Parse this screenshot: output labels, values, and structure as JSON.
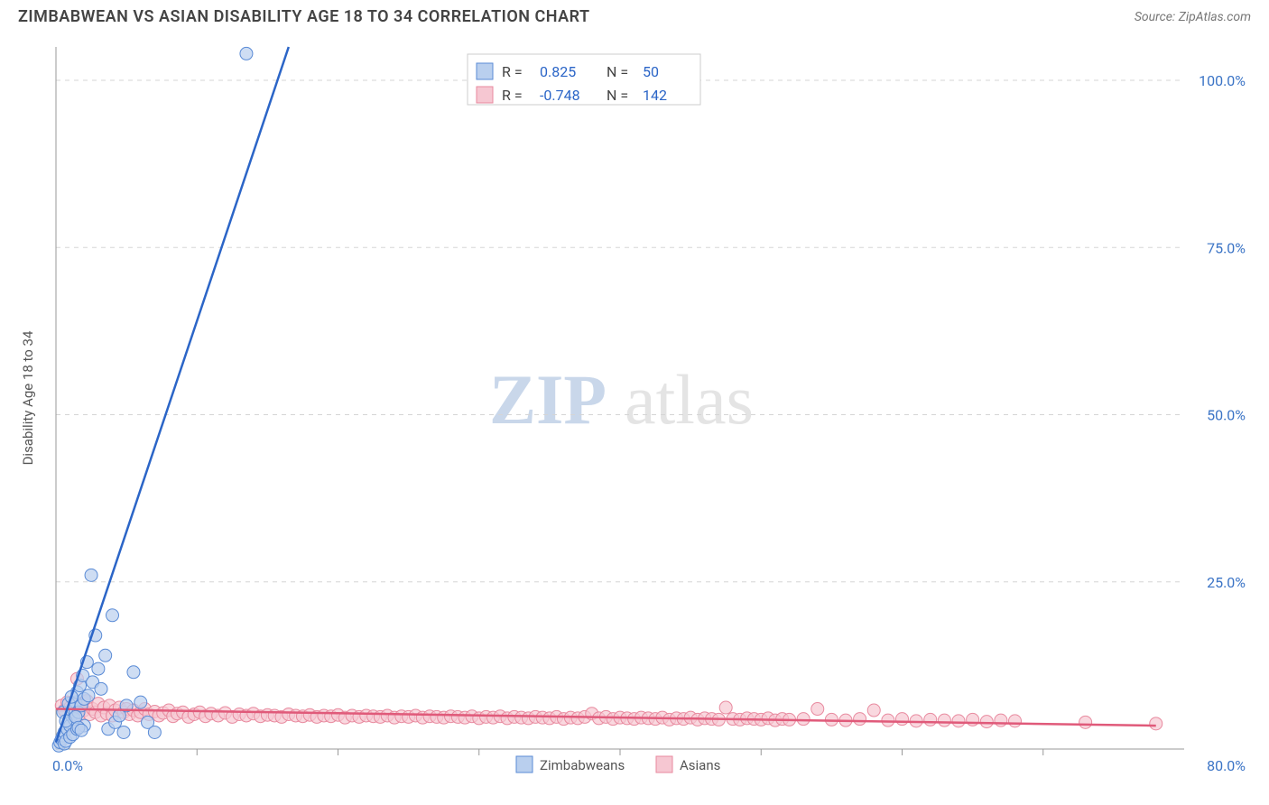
{
  "header": {
    "title": "ZIMBABWEAN VS ASIAN DISABILITY AGE 18 TO 34 CORRELATION CHART",
    "source": "Source: ZipAtlas.com"
  },
  "chart": {
    "type": "scatter",
    "background_color": "#ffffff",
    "grid_color": "#d5d5d5",
    "axis_color": "#999999",
    "tick_label_color": "#3b74c6",
    "y_axis_title": "Disability Age 18 to 34",
    "y_axis_title_fontsize": 15,
    "xlim": [
      0,
      80
    ],
    "ylim": [
      0,
      105
    ],
    "x_ticks": [
      10,
      20,
      30,
      40,
      50,
      60,
      70
    ],
    "y_ticks": [
      25,
      50,
      75,
      100
    ],
    "y_tick_labels": [
      "25.0%",
      "50.0%",
      "75.0%",
      "100.0%"
    ],
    "x_min_label": "0.0%",
    "x_max_label": "80.0%",
    "marker_radius": 7,
    "marker_stroke_width": 1,
    "line_width": 2.5,
    "watermark": {
      "part_a": "ZIP",
      "part_b": "atlas",
      "color_a": "#c9d7ea",
      "color_b": "#e4e4e4",
      "fontsize": 78
    },
    "series_a": {
      "label": "Zimbabweans",
      "fill": "#b9cfee",
      "stroke": "#5a8bd6",
      "line_color": "#2b65c7",
      "points": [
        [
          0.2,
          0.5
        ],
        [
          0.3,
          1.0
        ],
        [
          0.4,
          1.5
        ],
        [
          0.5,
          2.0
        ],
        [
          0.6,
          0.8
        ],
        [
          0.6,
          2.5
        ],
        [
          0.7,
          1.2
        ],
        [
          0.8,
          3.0
        ],
        [
          0.9,
          4.0
        ],
        [
          1.0,
          3.5
        ],
        [
          1.0,
          1.8
        ],
        [
          1.1,
          5.0
        ],
        [
          1.2,
          6.0
        ],
        [
          1.2,
          2.2
        ],
        [
          1.3,
          4.5
        ],
        [
          1.4,
          7.0
        ],
        [
          1.5,
          8.5
        ],
        [
          1.5,
          3.0
        ],
        [
          1.6,
          5.5
        ],
        [
          1.7,
          9.5
        ],
        [
          1.8,
          6.5
        ],
        [
          1.9,
          11.0
        ],
        [
          2.0,
          7.5
        ],
        [
          2.0,
          3.5
        ],
        [
          2.2,
          13.0
        ],
        [
          2.3,
          8.0
        ],
        [
          2.5,
          26.0
        ],
        [
          2.6,
          10.0
        ],
        [
          2.8,
          17.0
        ],
        [
          3.0,
          12.0
        ],
        [
          3.2,
          9.0
        ],
        [
          3.5,
          14.0
        ],
        [
          3.7,
          3.0
        ],
        [
          4.0,
          20.0
        ],
        [
          4.2,
          4.0
        ],
        [
          4.5,
          5.0
        ],
        [
          4.8,
          2.5
        ],
        [
          5.0,
          6.5
        ],
        [
          5.5,
          11.5
        ],
        [
          6.0,
          7.0
        ],
        [
          6.5,
          4.0
        ],
        [
          7.0,
          2.5
        ],
        [
          13.5,
          104.0
        ],
        [
          0.5,
          5.5
        ],
        [
          0.7,
          4.2
        ],
        [
          0.9,
          6.8
        ],
        [
          1.1,
          7.8
        ],
        [
          1.4,
          4.8
        ],
        [
          1.6,
          3.2
        ],
        [
          1.8,
          2.8
        ]
      ],
      "trend": {
        "x1": 0,
        "y1": 1.0,
        "x2": 16.5,
        "y2": 105
      }
    },
    "series_b": {
      "label": "Asians",
      "fill": "#f6c7d2",
      "stroke": "#e88a9f",
      "line_color": "#e05a7a",
      "points": [
        [
          0.4,
          6.5
        ],
        [
          0.6,
          5.8
        ],
        [
          0.8,
          7.0
        ],
        [
          1.0,
          6.2
        ],
        [
          1.2,
          5.5
        ],
        [
          1.4,
          6.8
        ],
        [
          1.5,
          10.5
        ],
        [
          1.6,
          5.0
        ],
        [
          1.8,
          6.5
        ],
        [
          2.0,
          5.8
        ],
        [
          2.2,
          7.2
        ],
        [
          2.4,
          5.2
        ],
        [
          2.6,
          6.0
        ],
        [
          2.8,
          5.5
        ],
        [
          3.0,
          6.8
        ],
        [
          3.2,
          5.0
        ],
        [
          3.4,
          6.2
        ],
        [
          3.6,
          5.3
        ],
        [
          3.8,
          6.5
        ],
        [
          4.0,
          5.0
        ],
        [
          4.2,
          5.8
        ],
        [
          4.5,
          6.2
        ],
        [
          4.8,
          5.5
        ],
        [
          5.0,
          6.0
        ],
        [
          5.2,
          5.2
        ],
        [
          5.5,
          5.8
        ],
        [
          5.8,
          5.0
        ],
        [
          6.0,
          5.5
        ],
        [
          6.3,
          6.0
        ],
        [
          6.6,
          5.2
        ],
        [
          7.0,
          5.6
        ],
        [
          7.3,
          5.0
        ],
        [
          7.6,
          5.4
        ],
        [
          8.0,
          5.8
        ],
        [
          8.3,
          4.9
        ],
        [
          8.6,
          5.3
        ],
        [
          9.0,
          5.5
        ],
        [
          9.4,
          4.8
        ],
        [
          9.8,
          5.2
        ],
        [
          10.2,
          5.5
        ],
        [
          10.6,
          4.9
        ],
        [
          11.0,
          5.3
        ],
        [
          11.5,
          5.0
        ],
        [
          12.0,
          5.4
        ],
        [
          12.5,
          4.8
        ],
        [
          13.0,
          5.2
        ],
        [
          13.5,
          5.0
        ],
        [
          14.0,
          5.3
        ],
        [
          14.5,
          4.9
        ],
        [
          15.0,
          5.1
        ],
        [
          15.5,
          5.0
        ],
        [
          16.0,
          4.8
        ],
        [
          16.5,
          5.2
        ],
        [
          17.0,
          5.0
        ],
        [
          17.5,
          4.9
        ],
        [
          18.0,
          5.1
        ],
        [
          18.5,
          4.8
        ],
        [
          19.0,
          5.0
        ],
        [
          19.5,
          4.9
        ],
        [
          20.0,
          5.1
        ],
        [
          20.5,
          4.7
        ],
        [
          21.0,
          5.0
        ],
        [
          21.5,
          4.8
        ],
        [
          22.0,
          5.0
        ],
        [
          22.5,
          4.9
        ],
        [
          23.0,
          4.8
        ],
        [
          23.5,
          5.0
        ],
        [
          24.0,
          4.7
        ],
        [
          24.5,
          4.9
        ],
        [
          25.0,
          4.8
        ],
        [
          25.5,
          5.0
        ],
        [
          26.0,
          4.7
        ],
        [
          26.5,
          4.9
        ],
        [
          27.0,
          4.8
        ],
        [
          27.5,
          4.7
        ],
        [
          28.0,
          4.9
        ],
        [
          28.5,
          4.8
        ],
        [
          29.0,
          4.7
        ],
        [
          29.5,
          4.9
        ],
        [
          30.0,
          4.6
        ],
        [
          30.5,
          4.8
        ],
        [
          31.0,
          4.7
        ],
        [
          31.5,
          4.9
        ],
        [
          32.0,
          4.6
        ],
        [
          32.5,
          4.8
        ],
        [
          33.0,
          4.7
        ],
        [
          33.5,
          4.6
        ],
        [
          34.0,
          4.8
        ],
        [
          34.5,
          4.7
        ],
        [
          35.0,
          4.6
        ],
        [
          35.5,
          4.8
        ],
        [
          36.0,
          4.5
        ],
        [
          36.5,
          4.7
        ],
        [
          37.0,
          4.6
        ],
        [
          37.5,
          4.8
        ],
        [
          38.0,
          5.3
        ],
        [
          38.5,
          4.6
        ],
        [
          39.0,
          4.8
        ],
        [
          39.5,
          4.5
        ],
        [
          40.0,
          4.7
        ],
        [
          40.5,
          4.6
        ],
        [
          41.0,
          4.5
        ],
        [
          41.5,
          4.7
        ],
        [
          42.0,
          4.6
        ],
        [
          42.5,
          4.5
        ],
        [
          43.0,
          4.7
        ],
        [
          43.5,
          4.4
        ],
        [
          44.0,
          4.6
        ],
        [
          44.5,
          4.5
        ],
        [
          45.0,
          4.7
        ],
        [
          45.5,
          4.4
        ],
        [
          46.0,
          4.6
        ],
        [
          46.5,
          4.5
        ],
        [
          47.0,
          4.4
        ],
        [
          47.5,
          6.2
        ],
        [
          48.0,
          4.5
        ],
        [
          48.5,
          4.4
        ],
        [
          49.0,
          4.6
        ],
        [
          49.5,
          4.5
        ],
        [
          50.0,
          4.4
        ],
        [
          50.5,
          4.6
        ],
        [
          51.0,
          4.3
        ],
        [
          51.5,
          4.5
        ],
        [
          52.0,
          4.4
        ],
        [
          53.0,
          4.5
        ],
        [
          54.0,
          6.0
        ],
        [
          55.0,
          4.4
        ],
        [
          56.0,
          4.3
        ],
        [
          57.0,
          4.5
        ],
        [
          58.0,
          5.8
        ],
        [
          59.0,
          4.3
        ],
        [
          60.0,
          4.5
        ],
        [
          61.0,
          4.2
        ],
        [
          62.0,
          4.4
        ],
        [
          63.0,
          4.3
        ],
        [
          64.0,
          4.2
        ],
        [
          65.0,
          4.4
        ],
        [
          66.0,
          4.1
        ],
        [
          67.0,
          4.3
        ],
        [
          68.0,
          4.2
        ],
        [
          73.0,
          4.0
        ],
        [
          78.0,
          3.8
        ]
      ],
      "trend": {
        "x1": 0,
        "y1": 6.0,
        "x2": 78,
        "y2": 3.5
      }
    },
    "stats_box": {
      "rows": [
        {
          "swatch_fill": "#b9cfee",
          "swatch_stroke": "#5a8bd6",
          "r_label": "R =",
          "r_value": "0.825",
          "n_label": "N =",
          "n_value": "50"
        },
        {
          "swatch_fill": "#f6c7d2",
          "swatch_stroke": "#e88a9f",
          "r_label": "R =",
          "r_value": "-0.748",
          "n_label": "N =",
          "n_value": "142"
        }
      ],
      "border_color": "#cccccc",
      "value_color": "#2b65c7",
      "fontsize": 16
    },
    "legend": {
      "items": [
        {
          "fill": "#b9cfee",
          "stroke": "#5a8bd6",
          "label": "Zimbabweans"
        },
        {
          "fill": "#f6c7d2",
          "stroke": "#e88a9f",
          "label": "Asians"
        }
      ],
      "fontsize": 15
    }
  }
}
